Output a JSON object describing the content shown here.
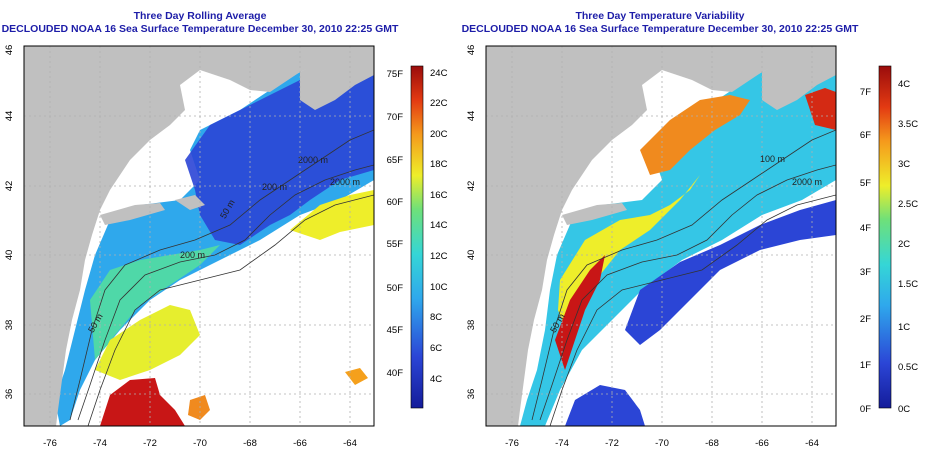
{
  "left_panel": {
    "title": "Three Day Rolling Average",
    "subtitle": "DECLOUDED NOAA 16 Sea Surface Temperature December 30, 2010 22:25 GMT",
    "x_ticks": [
      "-76",
      "-74",
      "-72",
      "-70",
      "-68",
      "-66",
      "-64"
    ],
    "y_ticks": [
      "36",
      "38",
      "40",
      "42",
      "44",
      "46"
    ],
    "contour_labels": [
      "2000 m",
      "200 m",
      "50 m",
      "200 m",
      "50 m",
      "2000 m"
    ],
    "colorbar_f": [
      "75F",
      "70F",
      "65F",
      "60F",
      "55F",
      "50F",
      "45F",
      "40F"
    ],
    "colorbar_c": [
      "24C",
      "22C",
      "20C",
      "18C",
      "16C",
      "14C",
      "12C",
      "10C",
      "8C",
      "6C",
      "4C"
    ]
  },
  "right_panel": {
    "title": "Three Day Temperature Variability",
    "subtitle": "DECLOUDED NOAA 16 Sea Surface Temperature December 30, 2010 22:25 GMT",
    "x_ticks": [
      "-76",
      "-74",
      "-72",
      "-70",
      "-68",
      "-66",
      "-64"
    ],
    "y_ticks": [
      "36",
      "38",
      "40",
      "42",
      "44",
      "46"
    ],
    "contour_labels": [
      "100 m",
      "2000 m",
      "50 m"
    ],
    "colorbar_f": [
      "7F",
      "6F",
      "5F",
      "4F",
      "3F",
      "2F",
      "1F",
      "0F"
    ],
    "colorbar_c": [
      "4C",
      "3.5C",
      "3C",
      "2.5C",
      "2C",
      "1.5C",
      "1C",
      "0.5C",
      "0C"
    ]
  },
  "colors": {
    "land": "#c0c0c0",
    "title": "#1d1da8",
    "deep_blue": "#2b45d6",
    "cyan": "#2fb8e8",
    "yellow": "#f2f02a",
    "orange": "#f08a1e",
    "red": "#c81616"
  }
}
